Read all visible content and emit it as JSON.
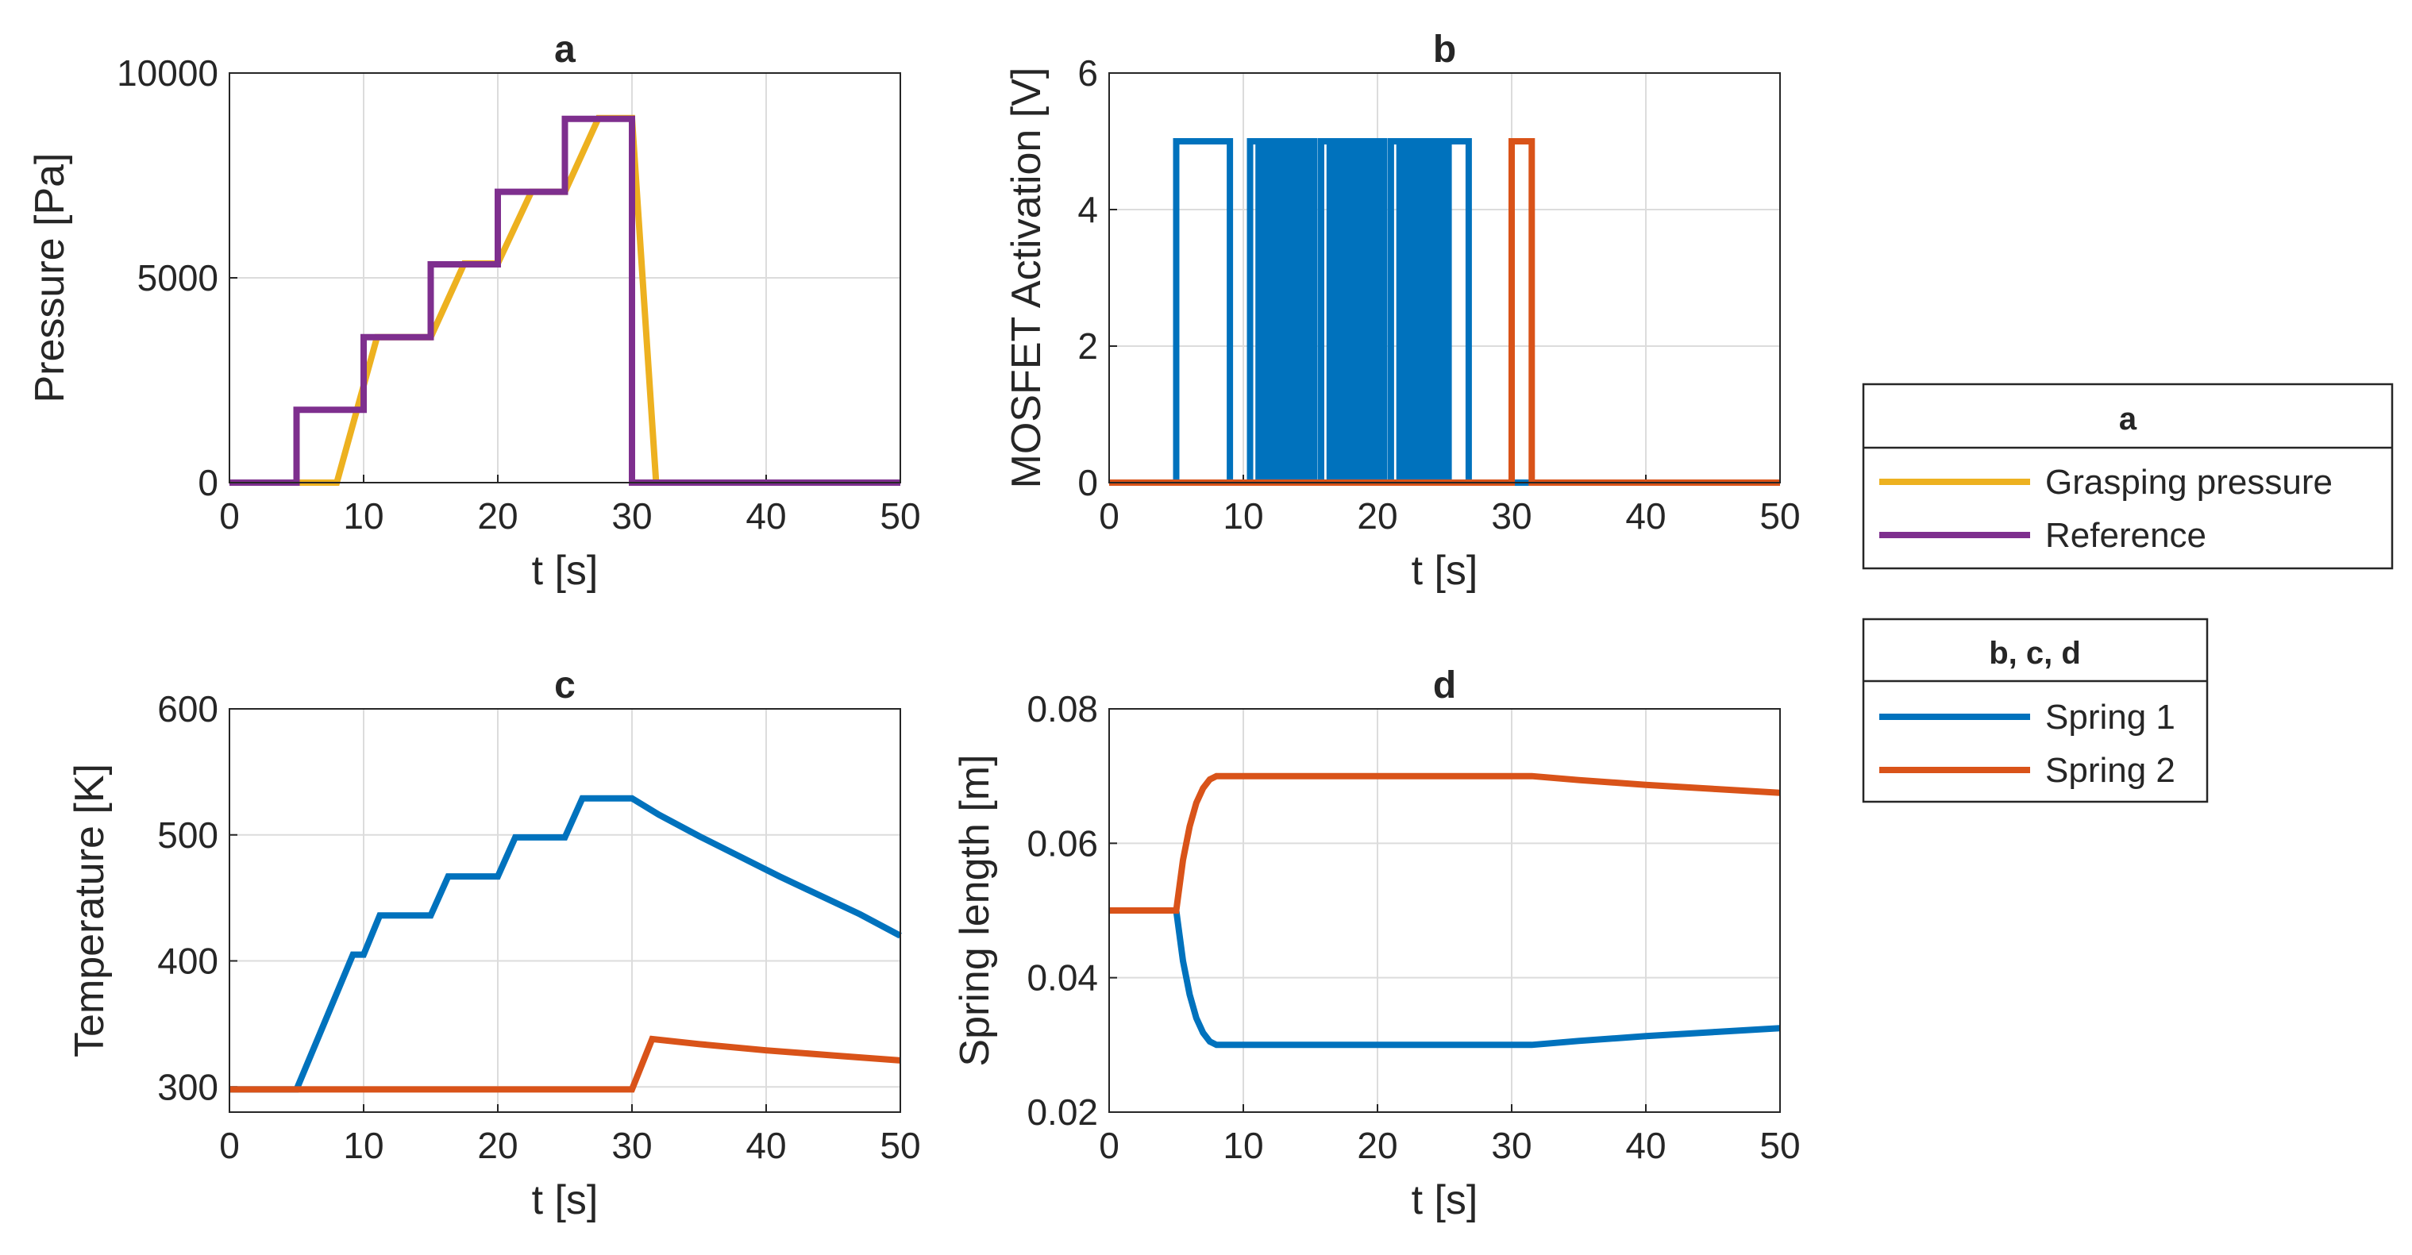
{
  "colors": {
    "grasping": "#EDB120",
    "reference": "#7E2F8E",
    "spring1": "#0072BD",
    "spring2": "#D95319"
  },
  "legend_a": {
    "title": "a",
    "entries": [
      {
        "label": "Grasping pressure",
        "color": "#EDB120"
      },
      {
        "label": "Reference",
        "color": "#7E2F8E"
      }
    ]
  },
  "legend_bcd": {
    "title": "b, c, d",
    "entries": [
      {
        "label": "Spring 1",
        "color": "#0072BD"
      },
      {
        "label": "Spring 2",
        "color": "#D95319"
      }
    ]
  },
  "chart_data": [
    {
      "id": "a",
      "type": "line",
      "title": "a",
      "xlabel": "t [s]",
      "ylabel": "Pressure [Pa]",
      "xlim": [
        0,
        50
      ],
      "ylim": [
        0,
        10000
      ],
      "xticks": [
        "0",
        "10",
        "20",
        "30",
        "40",
        "50"
      ],
      "yticks": [
        "0",
        "5000",
        "10000"
      ],
      "series": [
        {
          "name": "Grasping pressure",
          "color": "#EDB120",
          "x": [
            0,
            8,
            11,
            15,
            17.5,
            20,
            22.5,
            25,
            27.5,
            30,
            31.8,
            50
          ],
          "y": [
            0,
            0,
            3550,
            3550,
            5350,
            5350,
            7100,
            7100,
            8900,
            8900,
            0,
            0
          ]
        },
        {
          "name": "Reference",
          "color": "#7E2F8E",
          "x": [
            0,
            5,
            5,
            10,
            10,
            15,
            15,
            20,
            20,
            25,
            25,
            30,
            30,
            50
          ],
          "y": [
            0,
            0,
            1780,
            1780,
            3550,
            3550,
            5330,
            5330,
            7100,
            7100,
            8880,
            8880,
            0,
            0
          ]
        }
      ]
    },
    {
      "id": "b",
      "type": "line",
      "title": "b",
      "xlabel": "t [s]",
      "ylabel": "MOSFET Activation [V]",
      "xlim": [
        0,
        50
      ],
      "ylim": [
        0,
        6
      ],
      "xticks": [
        "0",
        "10",
        "20",
        "30",
        "40",
        "50"
      ],
      "yticks": [
        "0",
        "2",
        "4",
        "6"
      ],
      "series": [
        {
          "name": "Spring 1",
          "color": "#0072BD",
          "x": [
            0,
            5,
            5,
            9,
            9,
            10.5,
            10.5,
            15.3,
            15.3,
            15.8,
            15.8,
            20.5,
            20.5,
            21,
            21,
            25,
            25,
            25.3,
            25.3,
            26.8,
            26.8,
            50
          ],
          "y": [
            0,
            0,
            5,
            5,
            0,
            0,
            5,
            5,
            0,
            0,
            5,
            5,
            0,
            0,
            5,
            5,
            0,
            0,
            5,
            5,
            0,
            0
          ],
          "filled_regions": [
            [
              10.9,
              15.2
            ],
            [
              16.2,
              20.4
            ],
            [
              21.4,
              25
            ]
          ]
        },
        {
          "name": "Spring 2",
          "color": "#D95319",
          "x": [
            0,
            30,
            30,
            31.5,
            31.5,
            50
          ],
          "y": [
            0,
            0,
            5,
            5,
            0,
            0
          ]
        }
      ]
    },
    {
      "id": "c",
      "type": "line",
      "title": "c",
      "xlabel": "t [s]",
      "ylabel": "Temperature [K]",
      "xlim": [
        0,
        50
      ],
      "ylim": [
        280,
        600
      ],
      "xticks": [
        "0",
        "10",
        "20",
        "30",
        "40",
        "50"
      ],
      "yticks": [
        "300",
        "400",
        "500",
        "600"
      ],
      "series": [
        {
          "name": "Spring 1",
          "color": "#0072BD",
          "x": [
            0,
            5,
            9.2,
            10,
            11.2,
            15,
            16.3,
            20,
            21.3,
            25,
            26.3,
            30,
            32,
            35,
            38,
            41,
            44,
            47,
            50
          ],
          "y": [
            298,
            298,
            405,
            405,
            436,
            436,
            467,
            467,
            498,
            498,
            529,
            529,
            516,
            499,
            483,
            467,
            452,
            437,
            420
          ]
        },
        {
          "name": "Spring 2",
          "color": "#D95319",
          "x": [
            0,
            30,
            31.5,
            35,
            40,
            45,
            50
          ],
          "y": [
            298,
            298,
            338,
            334,
            329,
            325,
            321
          ]
        }
      ]
    },
    {
      "id": "d",
      "type": "line",
      "title": "d",
      "xlabel": "t [s]",
      "ylabel": "Spring length [m]",
      "xlim": [
        0,
        50
      ],
      "ylim": [
        0.02,
        0.08
      ],
      "xticks": [
        "0",
        "10",
        "20",
        "30",
        "40",
        "50"
      ],
      "yticks": [
        "0.02",
        "0.04",
        "0.06",
        "0.08"
      ],
      "series": [
        {
          "name": "Spring 1",
          "color": "#0072BD",
          "x": [
            0,
            5,
            5.5,
            6,
            6.5,
            7,
            7.5,
            8,
            31.5,
            35,
            40,
            45,
            50
          ],
          "y": [
            0.05,
            0.05,
            0.0425,
            0.0375,
            0.034,
            0.0318,
            0.0305,
            0.03,
            0.03,
            0.0306,
            0.0313,
            0.0319,
            0.0325
          ]
        },
        {
          "name": "Spring 2",
          "color": "#D95319",
          "x": [
            0,
            5,
            5.5,
            6,
            6.5,
            7,
            7.5,
            8,
            31.5,
            35,
            40,
            45,
            50
          ],
          "y": [
            0.05,
            0.05,
            0.0575,
            0.0625,
            0.066,
            0.0682,
            0.0695,
            0.07,
            0.07,
            0.0694,
            0.0687,
            0.0681,
            0.0675
          ]
        }
      ]
    }
  ]
}
